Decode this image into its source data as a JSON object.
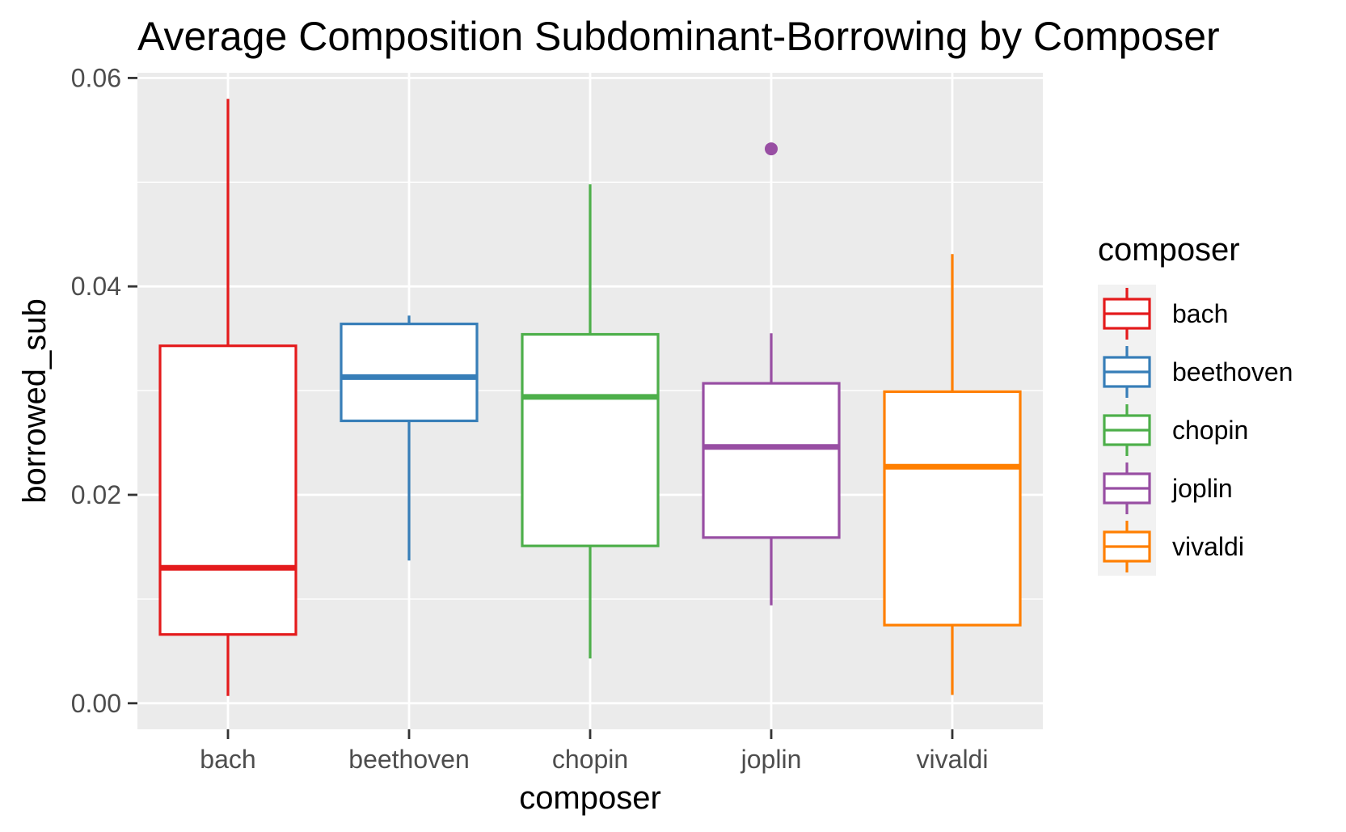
{
  "chart_data": {
    "type": "boxplot",
    "title": "Average Composition Subdominant-Borrowing by Composer",
    "xlabel": "composer",
    "ylabel": "borrowed_sub",
    "ylim": [
      -0.0025,
      0.0605
    ],
    "yticks": [
      0.0,
      0.02,
      0.04,
      0.06
    ],
    "ytick_labels": [
      "0.00",
      "0.02",
      "0.04",
      "0.06"
    ],
    "grid": true,
    "legend": {
      "title": "composer",
      "position": "right"
    },
    "categories": [
      "bach",
      "beethoven",
      "chopin",
      "joplin",
      "vivaldi"
    ],
    "series": [
      {
        "name": "bach",
        "color": "#E41A1C",
        "whisker_low": 0.0007,
        "q1": 0.0066,
        "median": 0.013,
        "q3": 0.0343,
        "whisker_high": 0.058,
        "outliers": []
      },
      {
        "name": "beethoven",
        "color": "#377EB8",
        "whisker_low": 0.0137,
        "q1": 0.0271,
        "median": 0.0313,
        "q3": 0.0364,
        "whisker_high": 0.0372,
        "outliers": []
      },
      {
        "name": "chopin",
        "color": "#4DAF4A",
        "whisker_low": 0.0043,
        "q1": 0.0151,
        "median": 0.0294,
        "q3": 0.0354,
        "whisker_high": 0.0498,
        "outliers": []
      },
      {
        "name": "joplin",
        "color": "#984EA3",
        "whisker_low": 0.0094,
        "q1": 0.0159,
        "median": 0.0246,
        "q3": 0.0307,
        "whisker_high": 0.0355,
        "outliers": [
          0.0532
        ]
      },
      {
        "name": "vivaldi",
        "color": "#FF7F00",
        "whisker_low": 0.0008,
        "q1": 0.0075,
        "median": 0.0227,
        "q3": 0.0299,
        "whisker_high": 0.0431,
        "outliers": []
      }
    ]
  }
}
